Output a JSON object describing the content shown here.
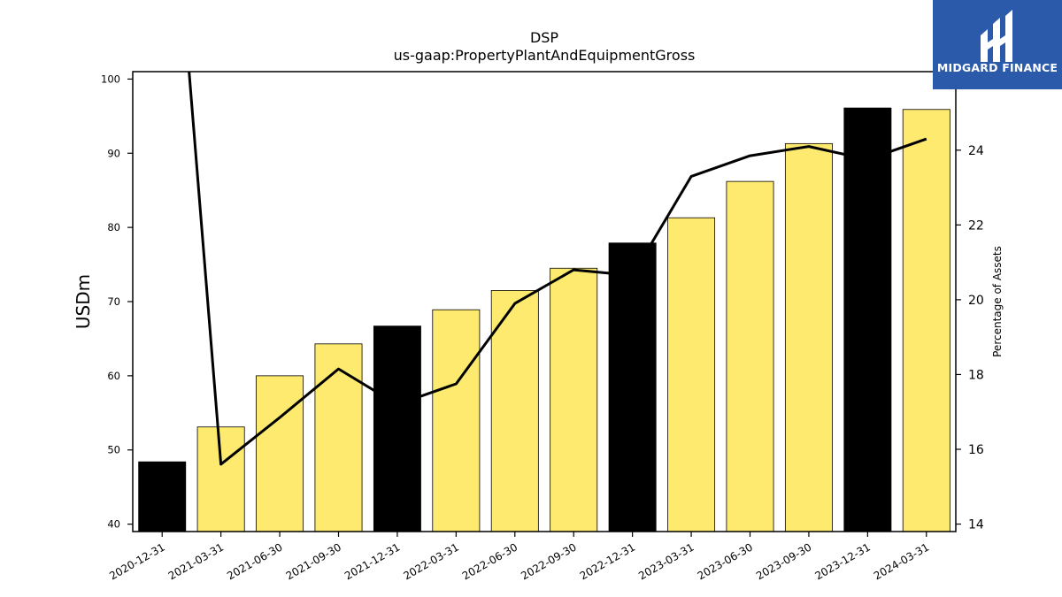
{
  "chart_data": {
    "type": "bar",
    "title": "DSP",
    "subtitle": "us-gaap:PropertyPlantAndEquipmentGross",
    "ylabel": "USDm",
    "ylabel_right": "Percentage of Assets",
    "categories": [
      "2020-12-31",
      "2021-03-31",
      "2021-06-30",
      "2021-09-30",
      "2021-12-31",
      "2022-03-31",
      "2022-06-30",
      "2022-09-30",
      "2022-12-31",
      "2023-03-31",
      "2023-06-30",
      "2023-09-30",
      "2023-12-31",
      "2024-03-31"
    ],
    "series": [
      {
        "type": "bar",
        "axis": "left",
        "values": [
          48.4,
          53.1,
          60.0,
          64.3,
          66.7,
          68.9,
          71.5,
          74.5,
          77.9,
          81.3,
          86.2,
          91.3,
          96.1,
          95.9
        ],
        "colors": [
          "#000000",
          "#fdea6f",
          "#fdea6f",
          "#fdea6f",
          "#000000",
          "#fdea6f",
          "#fdea6f",
          "#fdea6f",
          "#000000",
          "#fdea6f",
          "#fdea6f",
          "#fdea6f",
          "#000000",
          "#fdea6f"
        ]
      },
      {
        "type": "line",
        "axis": "right",
        "color": "#000000",
        "values": [
          35.0,
          15.6,
          16.85,
          18.15,
          17.2,
          17.75,
          19.9,
          20.8,
          20.65,
          23.3,
          23.85,
          24.1,
          23.75,
          24.3
        ]
      }
    ],
    "ylim": [
      39,
      101
    ],
    "ylim_right": [
      13.8,
      26.1
    ],
    "yticks": [
      40,
      50,
      60,
      70,
      80,
      90,
      100
    ],
    "yticks_right": [
      14,
      16,
      18,
      20,
      22,
      24
    ],
    "grid": false,
    "legend": "none"
  },
  "logo": {
    "text": "MIDGARD FINANCE",
    "background": "#2b5aab"
  }
}
